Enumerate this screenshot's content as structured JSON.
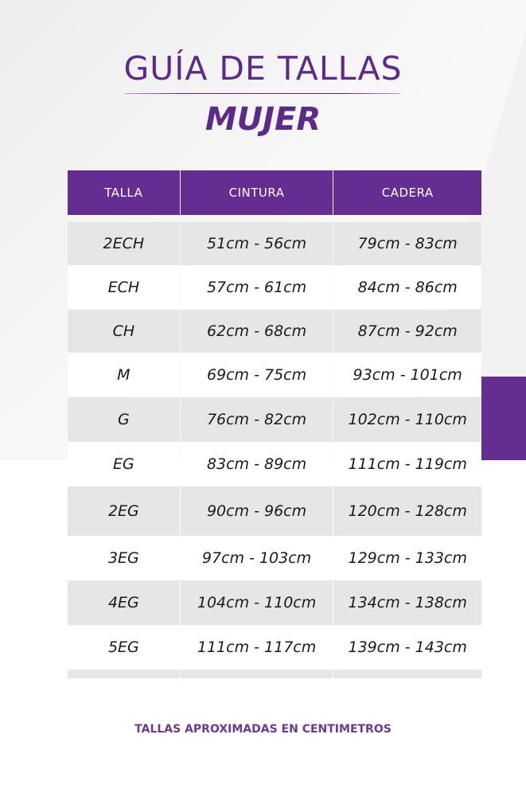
{
  "title": "GUÍA DE TALLAS",
  "subtitle": "MUJER",
  "colors": {
    "accent": "#652d8f",
    "row_alt": "#e6e6e6"
  },
  "table": {
    "headers": [
      "TALLA",
      "CINTURA",
      "CADERA"
    ],
    "rows": [
      [
        "2ECH",
        "51cm - 56cm",
        "79cm - 83cm"
      ],
      [
        "ECH",
        "57cm - 61cm",
        "84cm - 86cm"
      ],
      [
        "CH",
        "62cm - 68cm",
        "87cm - 92cm"
      ],
      [
        "M",
        "69cm - 75cm",
        "93cm - 101cm"
      ],
      [
        "G",
        "76cm - 82cm",
        "102cm - 110cm"
      ],
      [
        "EG",
        "83cm - 89cm",
        "111cm - 119cm"
      ],
      [
        "2EG",
        "90cm - 96cm",
        "120cm - 128cm"
      ],
      [
        "3EG",
        "97cm - 103cm",
        "129cm - 133cm"
      ],
      [
        "4EG",
        "104cm - 110cm",
        "134cm - 138cm"
      ],
      [
        "5EG",
        "111cm - 117cm",
        "139cm - 143cm"
      ]
    ]
  },
  "footer": "TALLAS APROXIMADAS EN CENTIMETROS"
}
